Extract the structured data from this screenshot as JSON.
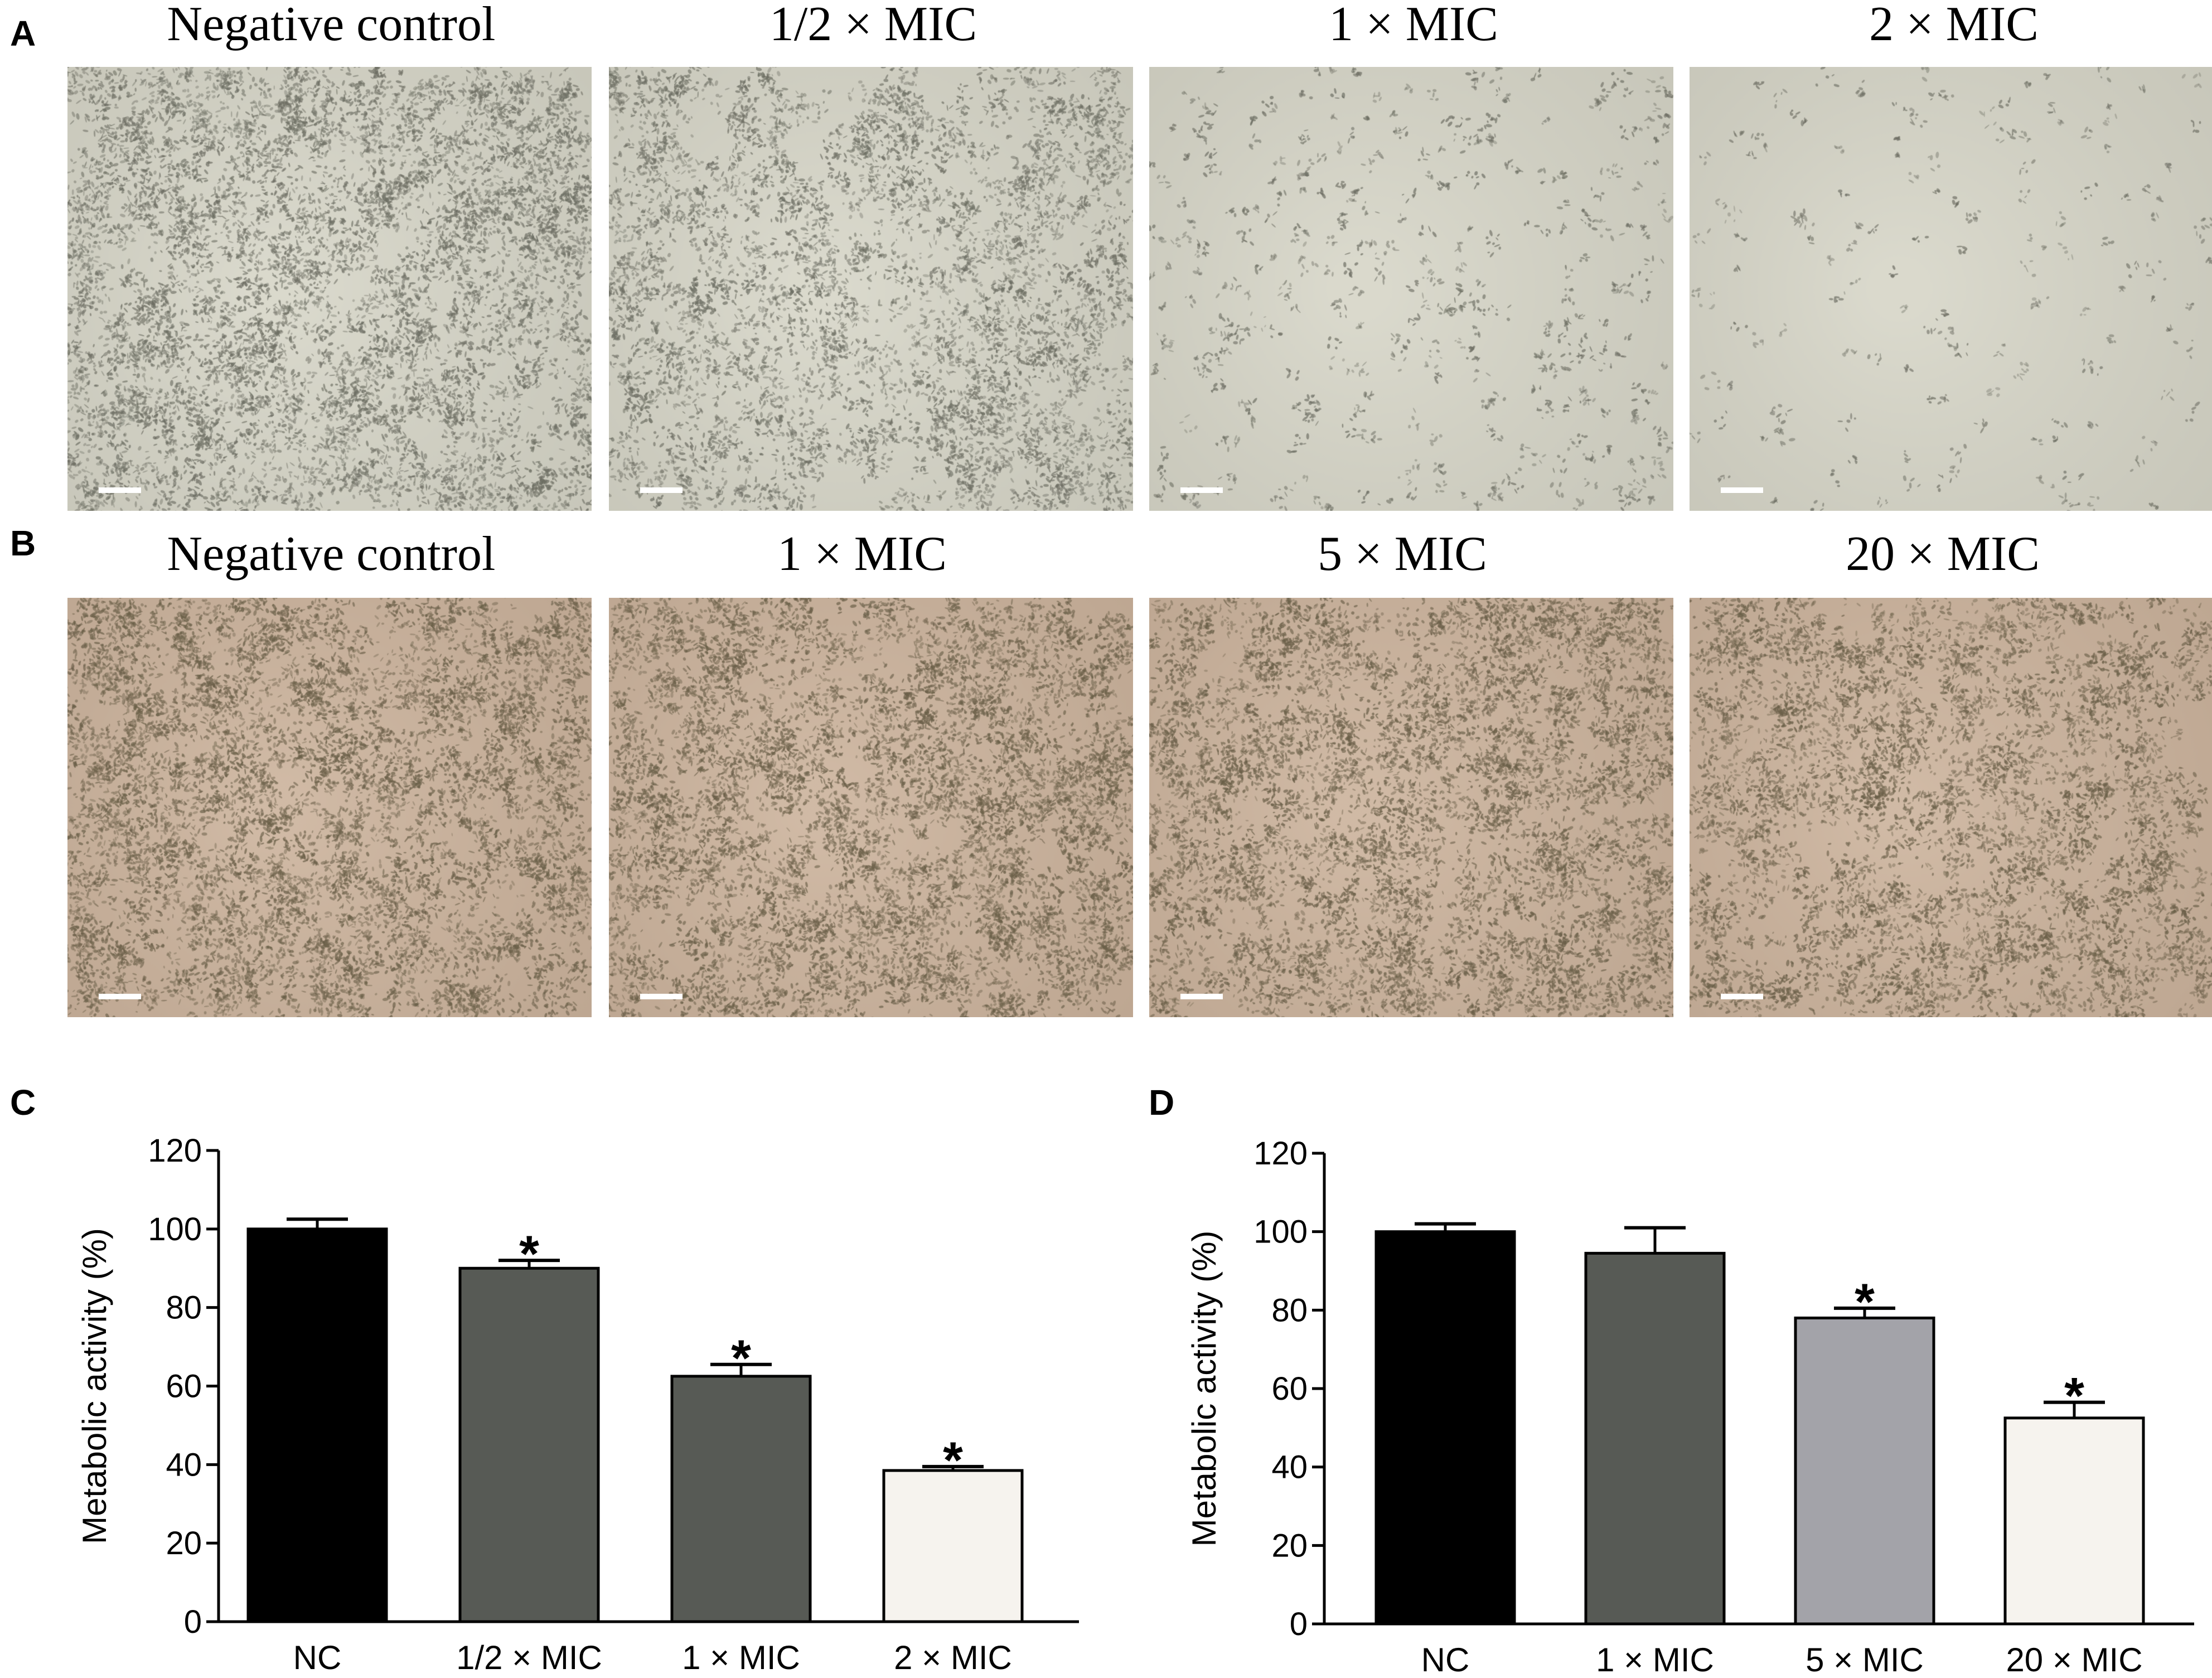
{
  "figure": {
    "panel_labels": [
      "A",
      "B",
      "C",
      "D"
    ],
    "rows": [
      {
        "label": "A",
        "background": "#d6d5c7",
        "cell_color": "#6e6f64",
        "images": [
          {
            "title": "Negative control",
            "density": 1.0
          },
          {
            "title": "1/2 × MIC",
            "density": 0.7
          },
          {
            "title": "1 × MIC",
            "density": 0.35
          },
          {
            "title": "2 × MIC",
            "density": 0.12
          }
        ]
      },
      {
        "label": "B",
        "background": "#cbb29b",
        "cell_color": "#6b6049",
        "images": [
          {
            "title": "Negative control",
            "density": 1.0
          },
          {
            "title": "1 × MIC",
            "density": 0.95
          },
          {
            "title": "5 × MIC",
            "density": 0.9
          },
          {
            "title": "20 × MIC",
            "density": 0.75
          }
        ]
      }
    ]
  },
  "chart_data": [
    {
      "panel": "C",
      "type": "bar",
      "categories": [
        "NC",
        "1/2 × MIC",
        "1 × MIC",
        "2 × MIC"
      ],
      "values": [
        100,
        90,
        62.5,
        38.5
      ],
      "errors": [
        2.5,
        2,
        3,
        1
      ],
      "significance": [
        "",
        "*",
        "*",
        "*"
      ],
      "colors": [
        "#000000",
        "#575a55",
        "#575a55",
        "#f6f3ee"
      ],
      "ylabel": "Metabolic activity (%)",
      "xlabel": "",
      "ylim": [
        0,
        120
      ],
      "yticks": [
        0,
        20,
        40,
        60,
        80,
        100,
        120
      ],
      "grid": false
    },
    {
      "panel": "D",
      "type": "bar",
      "categories": [
        "NC",
        "1 × MIC",
        "5 × MIC",
        "20 × MIC"
      ],
      "values": [
        100,
        94.5,
        78,
        52.5
      ],
      "errors": [
        2,
        6.5,
        2.5,
        4
      ],
      "significance": [
        "",
        "",
        "*",
        "*"
      ],
      "colors": [
        "#000000",
        "#575a55",
        "#a3a3a9",
        "#f6f3ee"
      ],
      "ylabel": "Metabolic activity (%)",
      "xlabel": "",
      "ylim": [
        0,
        120
      ],
      "yticks": [
        0,
        20,
        40,
        60,
        80,
        100,
        120
      ],
      "grid": false
    }
  ]
}
